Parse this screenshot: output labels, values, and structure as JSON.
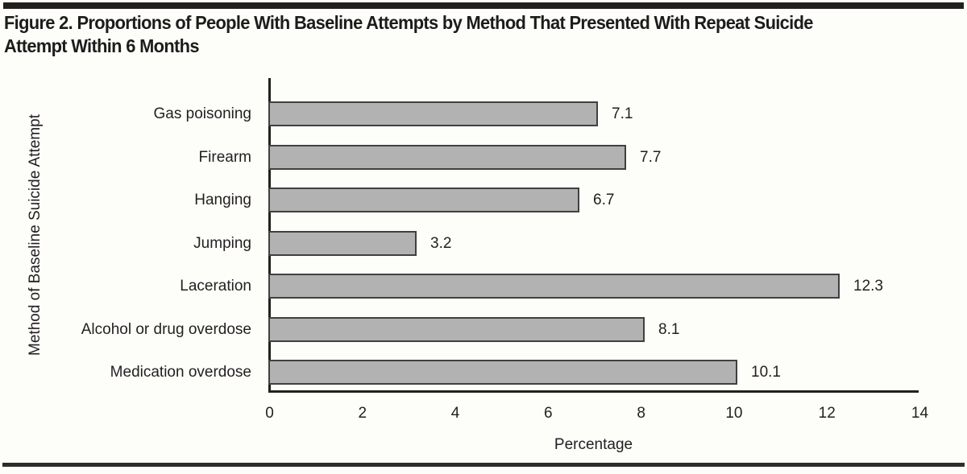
{
  "header": {
    "title_lines": [
      "Figure 2. Proportions of People With Baseline Attempts by Method That Presented With Repeat Suicide",
      "Attempt Within 6 Months"
    ]
  },
  "chart_data": {
    "type": "bar",
    "orientation": "horizontal",
    "title": "Figure 2. Proportions of People With Baseline Attempts by Method That Presented With Repeat Suicide Attempt Within 6 Months",
    "categories": [
      "Gas poisoning",
      "Firearm",
      "Hanging",
      "Jumping",
      "Laceration",
      "Alcohol or drug overdose",
      "Medication overdose"
    ],
    "values": [
      7.1,
      7.7,
      6.7,
      3.2,
      12.3,
      8.1,
      10.1
    ],
    "value_labels": [
      "7.1",
      "7.7",
      "6.7",
      "3.2",
      "12.3",
      "8.1",
      "10.1"
    ],
    "xlabel": "Percentage",
    "ylabel": "Method of Baseline Suicide Attempt",
    "xlim": [
      0,
      14
    ],
    "xticks": [
      0,
      2,
      4,
      6,
      8,
      10,
      12,
      14
    ],
    "grid": "off",
    "legend": "none",
    "bar_color": "#b2b2b2",
    "bar_border_color": "#404040",
    "axis_color": "#231f20",
    "rule_color": "#231f20"
  }
}
